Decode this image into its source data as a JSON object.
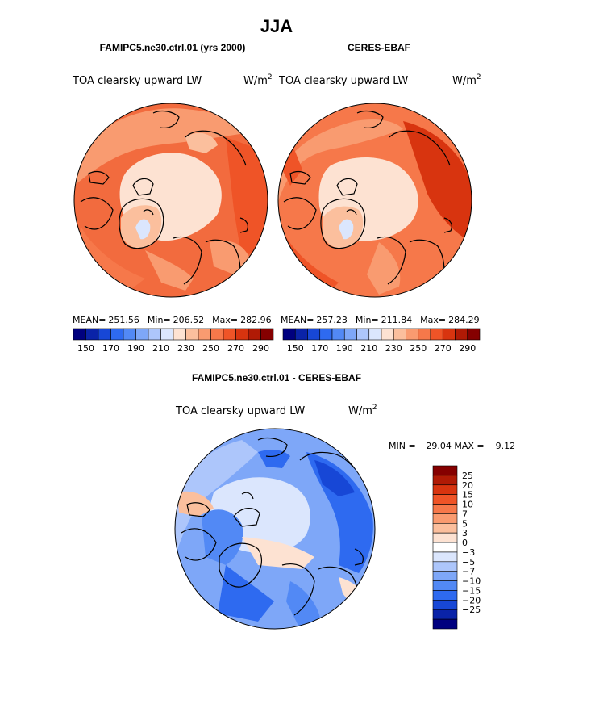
{
  "season": "JJA",
  "panels": [
    {
      "title": "FAMIPC5.ne30.ctrl.01 (yrs 2000)",
      "variable": "TOA clearsky upward LW",
      "units": "W/m",
      "units_exp": "2",
      "stats": {
        "mean_label": "MEAN=",
        "mean": "251.56",
        "min_label": "Min=",
        "min": "206.52",
        "max_label": "Max=",
        "max": "282.96"
      }
    },
    {
      "title": "CERES-EBAF",
      "variable": "TOA clearsky upward LW",
      "units": "W/m",
      "units_exp": "2",
      "stats": {
        "mean_label": "MEAN=",
        "mean": "257.23",
        "min_label": "Min=",
        "min": "211.84",
        "max_label": "Max=",
        "max": "284.29"
      }
    }
  ],
  "diff_panel": {
    "title": "FAMIPC5.ne30.ctrl.01 - CERES-EBAF",
    "variable": "TOA clearsky upward LW",
    "units": "W/m",
    "units_exp": "2",
    "minmax_text": "MIN = −29.04 MAX =    9.12"
  },
  "chart_data": [
    {
      "type": "heatmap",
      "projection": "north polar stereographic",
      "title": "FAMIPC5.ne30.ctrl.01 (yrs 2000)",
      "mean": 251.56,
      "min": 206.52,
      "max": 282.96,
      "colorbar": {
        "ticks": [
          150,
          170,
          190,
          210,
          230,
          250,
          270,
          290
        ],
        "range": [
          140,
          300
        ]
      }
    },
    {
      "type": "heatmap",
      "projection": "north polar stereographic",
      "title": "CERES-EBAF",
      "mean": 257.23,
      "min": 211.84,
      "max": 284.29,
      "colorbar": {
        "ticks": [
          150,
          170,
          190,
          210,
          230,
          250,
          270,
          290
        ],
        "range": [
          140,
          300
        ]
      }
    },
    {
      "type": "heatmap",
      "projection": "north polar stereographic",
      "title": "FAMIPC5.ne30.ctrl.01 - CERES-EBAF",
      "min": -29.04,
      "max": 9.12,
      "colorbar": {
        "levels": [
          "25",
          "20",
          "15",
          "10",
          "7",
          "5",
          "3",
          "0",
          "−3",
          "−5",
          "−7",
          "−10",
          "−15",
          "−20",
          "−25"
        ]
      }
    }
  ],
  "colors": {
    "abs_scale": [
      "#00007f",
      "#0a23a8",
      "#1747d6",
      "#2e6af0",
      "#5289f5",
      "#7ea7f8",
      "#adc6fb",
      "#dbe6fd",
      "#fde2d2",
      "#fbbf9d",
      "#f99b70",
      "#f6784a",
      "#ef5427",
      "#d8340f",
      "#b01a05",
      "#850000"
    ],
    "diff_scale": [
      "#850000",
      "#b01a05",
      "#d8340f",
      "#ef5427",
      "#f6784a",
      "#f99b70",
      "#fbbf9d",
      "#fde2d2",
      "#ffffff",
      "#dbe6fd",
      "#adc6fb",
      "#7ea7f8",
      "#5289f5",
      "#2e6af0",
      "#1747d6",
      "#0a23a8",
      "#00007f"
    ]
  }
}
